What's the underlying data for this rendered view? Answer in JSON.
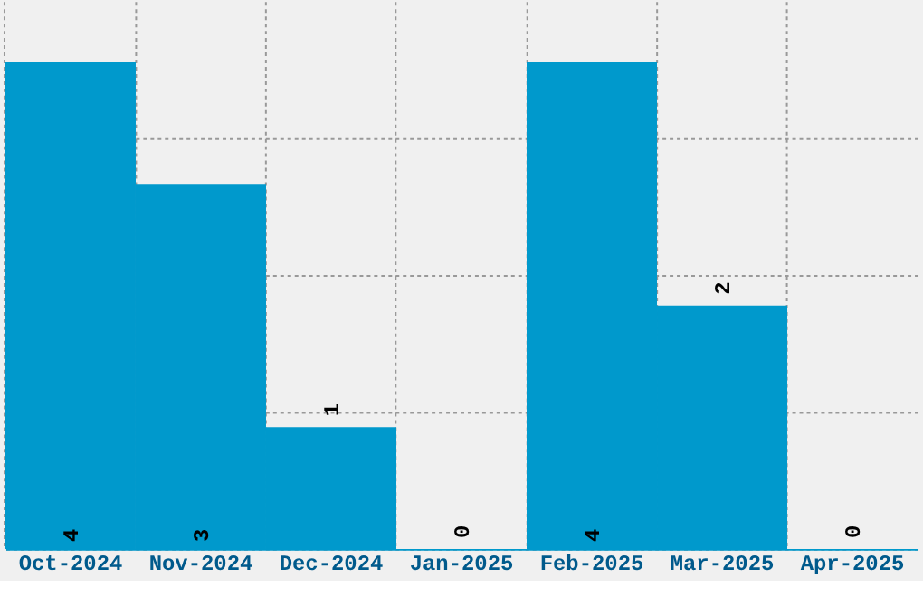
{
  "chart_data": {
    "type": "bar",
    "categories": [
      "Oct-2024",
      "Nov-2024",
      "Dec-2024",
      "Jan-2025",
      "Feb-2025",
      "Mar-2025",
      "Apr-2025"
    ],
    "values": [
      4,
      3,
      1,
      0,
      4,
      2,
      0
    ],
    "color": "#0099cc",
    "ylim": [
      0,
      4.5
    ],
    "yticks": [
      {
        "value": 0,
        "label": null
      },
      {
        "value": 1.125,
        "label": null
      },
      {
        "value": 2.25,
        "label": null
      },
      {
        "value": 3.375,
        "label": null
      }
    ],
    "tick_labels": "x",
    "grid": true,
    "data_labels": true
  }
}
